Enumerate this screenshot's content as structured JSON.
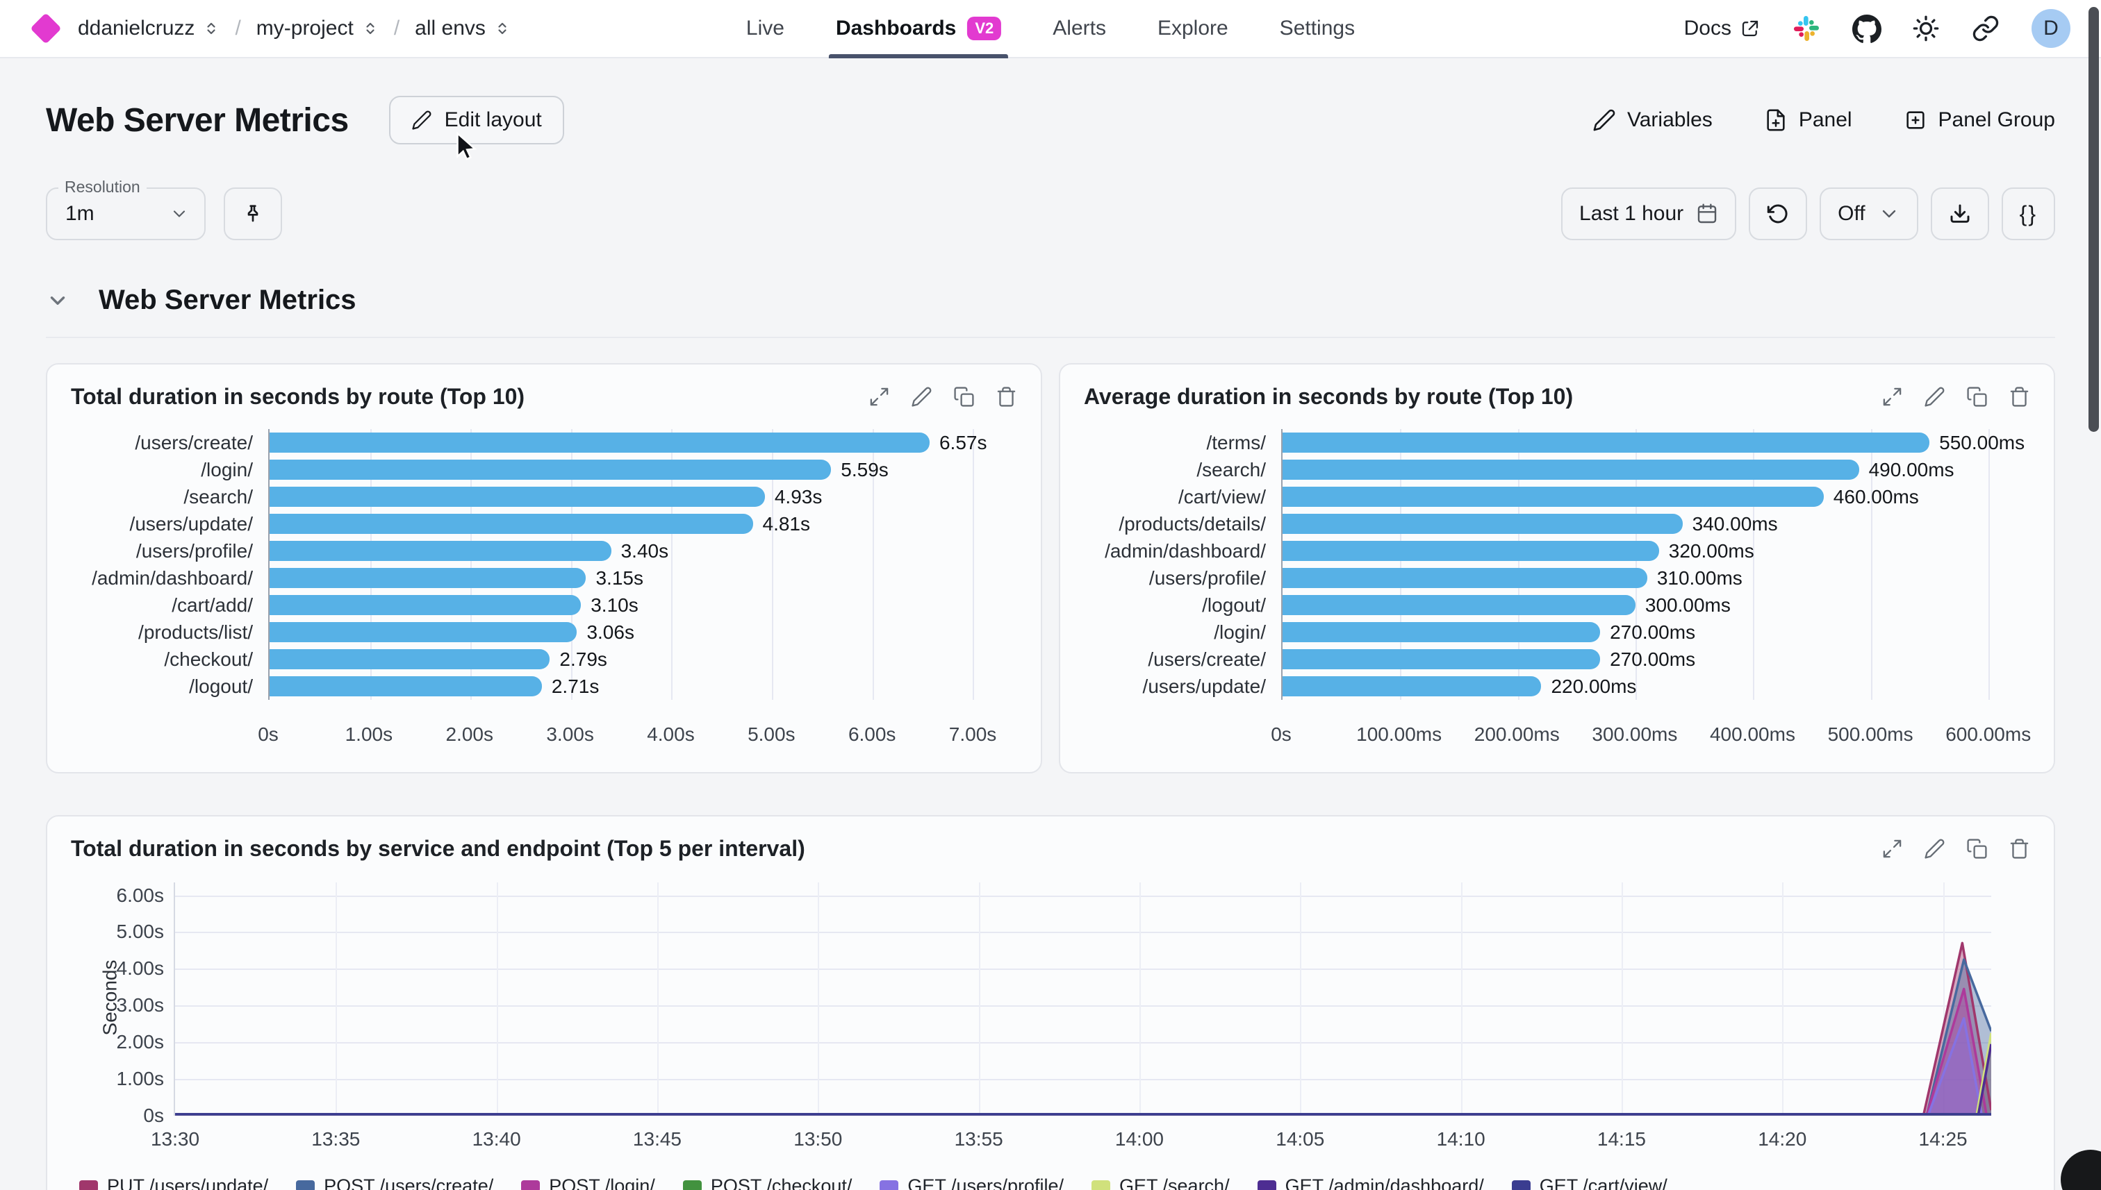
{
  "topbar": {
    "logo_color": "#e23ad0",
    "breadcrumb": [
      {
        "label": "ddanielcruzz"
      },
      {
        "label": "my-project"
      },
      {
        "label": "all envs"
      }
    ],
    "nav": [
      {
        "label": "Live",
        "active": false
      },
      {
        "label": "Dashboards",
        "active": true,
        "badge": "V2"
      },
      {
        "label": "Alerts",
        "active": false
      },
      {
        "label": "Explore",
        "active": false
      },
      {
        "label": "Settings",
        "active": false
      }
    ],
    "docs_label": "Docs",
    "icons": [
      "external-link-icon",
      "slack-icon",
      "github-icon",
      "sun-icon",
      "link-icon"
    ],
    "avatar_letter": "D"
  },
  "header": {
    "title": "Web Server Metrics",
    "edit_layout_label": "Edit layout",
    "actions": [
      {
        "icon": "pencil-icon",
        "label": "Variables"
      },
      {
        "icon": "file-plus-icon",
        "label": "Panel"
      },
      {
        "icon": "square-plus-icon",
        "label": "Panel Group"
      }
    ]
  },
  "controls": {
    "resolution_label": "Resolution",
    "resolution_value": "1m",
    "pin_icon": "pin-icon",
    "time_range_label": "Last 1 hour",
    "calendar_icon": "calendar-icon",
    "refresh_icon": "refresh-icon",
    "auto_refresh_value": "Off",
    "download_icon": "download-icon",
    "braces_label": "{}"
  },
  "section": {
    "title": "Web Server Metrics"
  },
  "panel_icons": [
    "expand-icon",
    "edit-icon",
    "duplicate-icon",
    "delete-icon"
  ],
  "colors": {
    "accent": "#e23ad0",
    "bar": "#57b1e6"
  },
  "chart_data": [
    {
      "type": "bar",
      "orientation": "horizontal",
      "title": "Total duration in seconds by route (Top 10)",
      "categories": [
        "/users/create/",
        "/login/",
        "/search/",
        "/users/update/",
        "/users/profile/",
        "/admin/dashboard/",
        "/cart/add/",
        "/products/list/",
        "/checkout/",
        "/logout/"
      ],
      "values": [
        6.57,
        5.59,
        4.93,
        4.81,
        3.4,
        3.15,
        3.1,
        3.06,
        2.79,
        2.71
      ],
      "value_labels": [
        "6.57s",
        "5.59s",
        "4.93s",
        "4.81s",
        "3.40s",
        "3.15s",
        "3.10s",
        "3.06s",
        "2.79s",
        "2.71s"
      ],
      "x_ticks": [
        {
          "v": 0,
          "label": "0s"
        },
        {
          "v": 1,
          "label": "1.00s"
        },
        {
          "v": 2,
          "label": "2.00s"
        },
        {
          "v": 3,
          "label": "3.00s"
        },
        {
          "v": 4,
          "label": "4.00s"
        },
        {
          "v": 5,
          "label": "5.00s"
        },
        {
          "v": 6,
          "label": "6.00s"
        },
        {
          "v": 7,
          "label": "7.00s"
        }
      ],
      "xlim": [
        0,
        7.4
      ],
      "bar_color": "#57b1e6"
    },
    {
      "type": "bar",
      "orientation": "horizontal",
      "title": "Average duration in seconds by route (Top 10)",
      "categories": [
        "/terms/",
        "/search/",
        "/cart/view/",
        "/products/details/",
        "/admin/dashboard/",
        "/users/profile/",
        "/logout/",
        "/login/",
        "/users/create/",
        "/users/update/"
      ],
      "values": [
        550,
        490,
        460,
        340,
        320,
        310,
        300,
        270,
        270,
        220
      ],
      "value_labels": [
        "550.00ms",
        "490.00ms",
        "460.00ms",
        "340.00ms",
        "320.00ms",
        "310.00ms",
        "300.00ms",
        "270.00ms",
        "270.00ms",
        "220.00ms"
      ],
      "x_ticks": [
        {
          "v": 0,
          "label": "0s"
        },
        {
          "v": 100,
          "label": "100.00ms"
        },
        {
          "v": 200,
          "label": "200.00ms"
        },
        {
          "v": 300,
          "label": "300.00ms"
        },
        {
          "v": 400,
          "label": "400.00ms"
        },
        {
          "v": 500,
          "label": "500.00ms"
        },
        {
          "v": 600,
          "label": "600.00ms"
        }
      ],
      "xlim": [
        0,
        632
      ],
      "bar_color": "#57b1e6"
    },
    {
      "type": "line",
      "title": "Total duration in seconds by service and endpoint (Top 5 per interval)",
      "ylabel": "Seconds",
      "y_ticks": [
        {
          "v": 0,
          "label": "0s"
        },
        {
          "v": 1,
          "label": "1.00s"
        },
        {
          "v": 2,
          "label": "2.00s"
        },
        {
          "v": 3,
          "label": "3.00s"
        },
        {
          "v": 4,
          "label": "4.00s"
        },
        {
          "v": 5,
          "label": "5.00s"
        },
        {
          "v": 6,
          "label": "6.00s"
        }
      ],
      "ylim": [
        0,
        6.35
      ],
      "x_ticks": [
        {
          "v": 0,
          "label": "13:30"
        },
        {
          "v": 5,
          "label": "13:35"
        },
        {
          "v": 10,
          "label": "13:40"
        },
        {
          "v": 15,
          "label": "13:45"
        },
        {
          "v": 20,
          "label": "13:50"
        },
        {
          "v": 25,
          "label": "13:55"
        },
        {
          "v": 30,
          "label": "14:00"
        },
        {
          "v": 35,
          "label": "14:05"
        },
        {
          "v": 40,
          "label": "14:10"
        },
        {
          "v": 45,
          "label": "14:15"
        },
        {
          "v": 50,
          "label": "14:20"
        },
        {
          "v": 55,
          "label": "14:25"
        }
      ],
      "xlim": [
        0,
        56.5
      ],
      "series": [
        {
          "name": "PUT /users/update/",
          "color": "#a0376c",
          "points": [
            [
              0,
              0.04
            ],
            [
              54.4,
              0.04
            ],
            [
              55.6,
              4.7
            ],
            [
              56.5,
              0.15
            ]
          ]
        },
        {
          "name": "POST /users/create/",
          "color": "#47699e",
          "points": [
            [
              0,
              0.04
            ],
            [
              54.5,
              0.04
            ],
            [
              55.65,
              4.25
            ],
            [
              56.5,
              2.3
            ]
          ]
        },
        {
          "name": "POST /login/",
          "color": "#ad3a9b",
          "points": [
            [
              0,
              0.04
            ],
            [
              54.5,
              0.04
            ],
            [
              55.65,
              3.45
            ],
            [
              56.35,
              0.04
            ],
            [
              56.5,
              0.04
            ]
          ]
        },
        {
          "name": "POST /checkout/",
          "color": "#42923f",
          "points": [
            [
              0,
              0.04
            ],
            [
              56.5,
              0.04
            ]
          ]
        },
        {
          "name": "GET /users/profile/",
          "color": "#8672e2",
          "points": [
            [
              0,
              0.04
            ],
            [
              54.55,
              0.04
            ],
            [
              55.65,
              2.65
            ],
            [
              56.2,
              0.04
            ],
            [
              56.5,
              0.04
            ]
          ]
        },
        {
          "name": "GET /search/",
          "color": "#d0e17c",
          "points": [
            [
              0,
              0.04
            ],
            [
              56.05,
              0.04
            ],
            [
              56.5,
              2.25
            ]
          ]
        },
        {
          "name": "GET /admin/dashboard/",
          "color": "#4d2d92",
          "points": [
            [
              0,
              0.04
            ],
            [
              56.1,
              0.04
            ],
            [
              56.5,
              1.95
            ]
          ]
        },
        {
          "name": "GET /cart/view/",
          "color": "#3a3d90",
          "points": [
            [
              0,
              0.04
            ],
            [
              56.5,
              0.04
            ]
          ]
        }
      ]
    }
  ]
}
